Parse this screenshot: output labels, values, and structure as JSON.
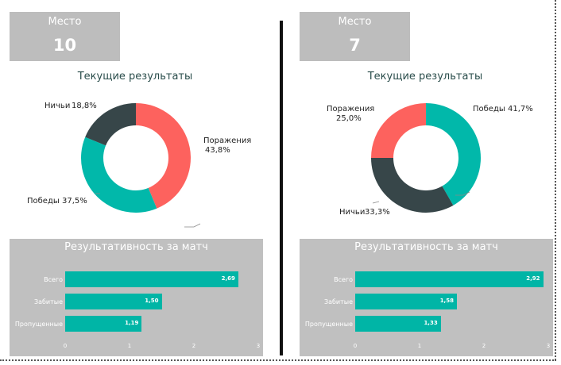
{
  "panels": [
    {
      "place_label": "Место",
      "place_value": "10",
      "donut_title": "Текущие результаты",
      "donut": [
        {
          "name": "Поражения",
          "pct": "43,8%",
          "value": 43.8,
          "color": "#fd625e"
        },
        {
          "name": "Победы",
          "pct": "37,5%",
          "value": 37.5,
          "color": "#01b8aa"
        },
        {
          "name": "Ничьи",
          "pct": "18,8%",
          "value": 18.8,
          "color": "#374649"
        }
      ],
      "perf_title": "Результативность за матч",
      "bars": [
        {
          "label": "Всего",
          "value": 2.69,
          "text": "2,69"
        },
        {
          "label": "Забитые",
          "value": 1.5,
          "text": "1,50"
        },
        {
          "label": "Пропущенные",
          "value": 1.19,
          "text": "1,19"
        }
      ],
      "ticks": [
        "0",
        "1",
        "2",
        "3"
      ]
    },
    {
      "place_label": "Место",
      "place_value": "7",
      "donut_title": "Текущие результаты",
      "donut": [
        {
          "name": "Победы",
          "pct": "41,7%",
          "value": 41.7,
          "color": "#01b8aa"
        },
        {
          "name": "Ничьи",
          "pct": "33,3%",
          "value": 33.3,
          "color": "#374649"
        },
        {
          "name": "Поражения",
          "pct": "25,0%",
          "value": 25.0,
          "color": "#fd625e"
        }
      ],
      "perf_title": "Результативность за матч",
      "bars": [
        {
          "label": "Всего",
          "value": 2.92,
          "text": "2,92"
        },
        {
          "label": "Забитые",
          "value": 1.58,
          "text": "1,58"
        },
        {
          "label": "Пропущенные",
          "value": 1.33,
          "text": "1,33"
        }
      ],
      "ticks": [
        "0",
        "1",
        "2",
        "3"
      ]
    }
  ],
  "axis_max": 3
}
